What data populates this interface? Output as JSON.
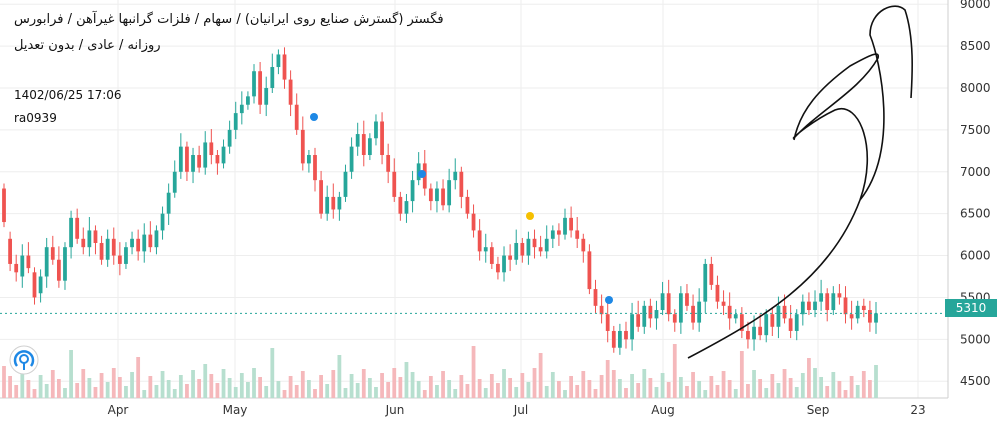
{
  "header": {
    "title": "فگستر (گسترش صنایع روی ایرانیان) / سهام / فلزات گرانبها غیرآهن / فرابورس",
    "subtitle": "روزانه / عادی / بدون تعدیل",
    "datetime": "1402/06/25 17:06",
    "author": "ra0939"
  },
  "current_price": {
    "label": "5310",
    "color": "#26a69a"
  },
  "colors": {
    "up": "#26a69a",
    "down": "#ef5350",
    "vol_up": "#b7dfcf",
    "vol_down": "#f5b8bb",
    "grid": "#eeeeee"
  },
  "chart_data": {
    "type": "candlestick",
    "ylim": [
      4300,
      9050
    ],
    "y_ticks": [
      "4500",
      "5000",
      "5500",
      "6000",
      "6500",
      "7000",
      "7500",
      "8000",
      "8500",
      "9000"
    ],
    "x_ticks": [
      "Apr",
      "May",
      "Jun",
      "Jul",
      "Aug",
      "Sep",
      "23"
    ],
    "reference_line": 5310,
    "candles": [
      [
        6800,
        6400
      ],
      [
        6200,
        5900
      ],
      [
        5900,
        5800
      ],
      [
        5750,
        6000
      ],
      [
        6000,
        5850
      ],
      [
        5800,
        5500
      ],
      [
        5550,
        5750
      ],
      [
        5750,
        6100
      ],
      [
        6100,
        5950
      ],
      [
        5950,
        5700
      ],
      [
        5700,
        6100
      ],
      [
        6100,
        6450
      ],
      [
        6450,
        6200
      ],
      [
        6200,
        6100
      ],
      [
        6100,
        6300
      ],
      [
        6300,
        6150
      ],
      [
        6150,
        5950
      ],
      [
        5950,
        6200
      ],
      [
        6200,
        6000
      ],
      [
        6000,
        5900
      ],
      [
        5900,
        6100
      ],
      [
        6100,
        6200
      ],
      [
        6200,
        6050
      ],
      [
        6050,
        6250
      ],
      [
        6250,
        6100
      ],
      [
        6100,
        6300
      ],
      [
        6300,
        6500
      ],
      [
        6500,
        6750
      ],
      [
        6750,
        7000
      ],
      [
        7000,
        7300
      ],
      [
        7300,
        7000
      ],
      [
        7000,
        7200
      ],
      [
        7200,
        7050
      ],
      [
        7050,
        7350
      ],
      [
        7350,
        7200
      ],
      [
        7200,
        7100
      ],
      [
        7100,
        7300
      ],
      [
        7300,
        7500
      ],
      [
        7500,
        7700
      ],
      [
        7700,
        7800
      ],
      [
        7800,
        7900
      ],
      [
        7900,
        8200
      ],
      [
        8200,
        7800
      ],
      [
        7800,
        8000
      ],
      [
        8000,
        8250
      ],
      [
        8250,
        8400
      ],
      [
        8400,
        8100
      ],
      [
        8100,
        7800
      ],
      [
        7800,
        7500
      ],
      [
        7500,
        7100
      ],
      [
        7100,
        7200
      ],
      [
        7200,
        6900
      ],
      [
        6900,
        6500
      ],
      [
        6500,
        6700
      ],
      [
        6700,
        6550
      ],
      [
        6550,
        6700
      ],
      [
        6700,
        7000
      ],
      [
        7000,
        7300
      ],
      [
        7300,
        7450
      ],
      [
        7450,
        7200
      ],
      [
        7200,
        7400
      ],
      [
        7400,
        7600
      ],
      [
        7600,
        7200
      ],
      [
        7200,
        7000
      ],
      [
        7000,
        6700
      ],
      [
        6700,
        6500
      ],
      [
        6500,
        6650
      ],
      [
        6650,
        6900
      ],
      [
        6900,
        7100
      ],
      [
        7100,
        6800
      ],
      [
        6800,
        6650
      ],
      [
        6650,
        6800
      ],
      [
        6800,
        6600
      ],
      [
        6600,
        6900
      ],
      [
        6900,
        7000
      ],
      [
        7000,
        6700
      ],
      [
        6700,
        6500
      ],
      [
        6500,
        6300
      ],
      [
        6300,
        6050
      ],
      [
        6050,
        6100
      ],
      [
        6100,
        5900
      ],
      [
        5900,
        5800
      ],
      [
        5800,
        6000
      ],
      [
        6000,
        5950
      ],
      [
        5950,
        6150
      ],
      [
        6150,
        6000
      ],
      [
        6000,
        6200
      ],
      [
        6200,
        6100
      ],
      [
        6100,
        6050
      ],
      [
        6050,
        6200
      ],
      [
        6200,
        6300
      ],
      [
        6300,
        6250
      ],
      [
        6250,
        6450
      ],
      [
        6450,
        6300
      ],
      [
        6300,
        6200
      ],
      [
        6200,
        6050
      ],
      [
        6050,
        5600
      ],
      [
        5600,
        5400
      ],
      [
        5400,
        5300
      ],
      [
        5300,
        5100
      ],
      [
        5100,
        4900
      ],
      [
        4900,
        5100
      ],
      [
        5100,
        5000
      ],
      [
        5000,
        5300
      ],
      [
        5300,
        5150
      ],
      [
        5150,
        5400
      ],
      [
        5400,
        5250
      ],
      [
        5250,
        5350
      ],
      [
        5350,
        5550
      ],
      [
        5550,
        5300
      ],
      [
        5300,
        5200
      ],
      [
        5200,
        5550
      ],
      [
        5550,
        5400
      ],
      [
        5400,
        5200
      ],
      [
        5200,
        5450
      ],
      [
        5450,
        5900
      ],
      [
        5900,
        5650
      ],
      [
        5650,
        5450
      ],
      [
        5450,
        5400
      ],
      [
        5400,
        5250
      ],
      [
        5250,
        5300
      ],
      [
        5300,
        5100
      ],
      [
        5100,
        5000
      ],
      [
        5000,
        5150
      ],
      [
        5150,
        5050
      ],
      [
        5050,
        5300
      ],
      [
        5300,
        5150
      ],
      [
        5150,
        5400
      ],
      [
        5400,
        5250
      ],
      [
        5250,
        5100
      ],
      [
        5100,
        5300
      ],
      [
        5300,
        5450
      ],
      [
        5450,
        5350
      ],
      [
        5350,
        5450
      ],
      [
        5450,
        5550
      ],
      [
        5550,
        5350
      ],
      [
        5350,
        5550
      ],
      [
        5550,
        5500
      ],
      [
        5500,
        5300
      ],
      [
        5300,
        5250
      ],
      [
        5250,
        5400
      ],
      [
        5400,
        5350
      ],
      [
        5350,
        5200
      ],
      [
        5200,
        5310
      ]
    ]
  }
}
